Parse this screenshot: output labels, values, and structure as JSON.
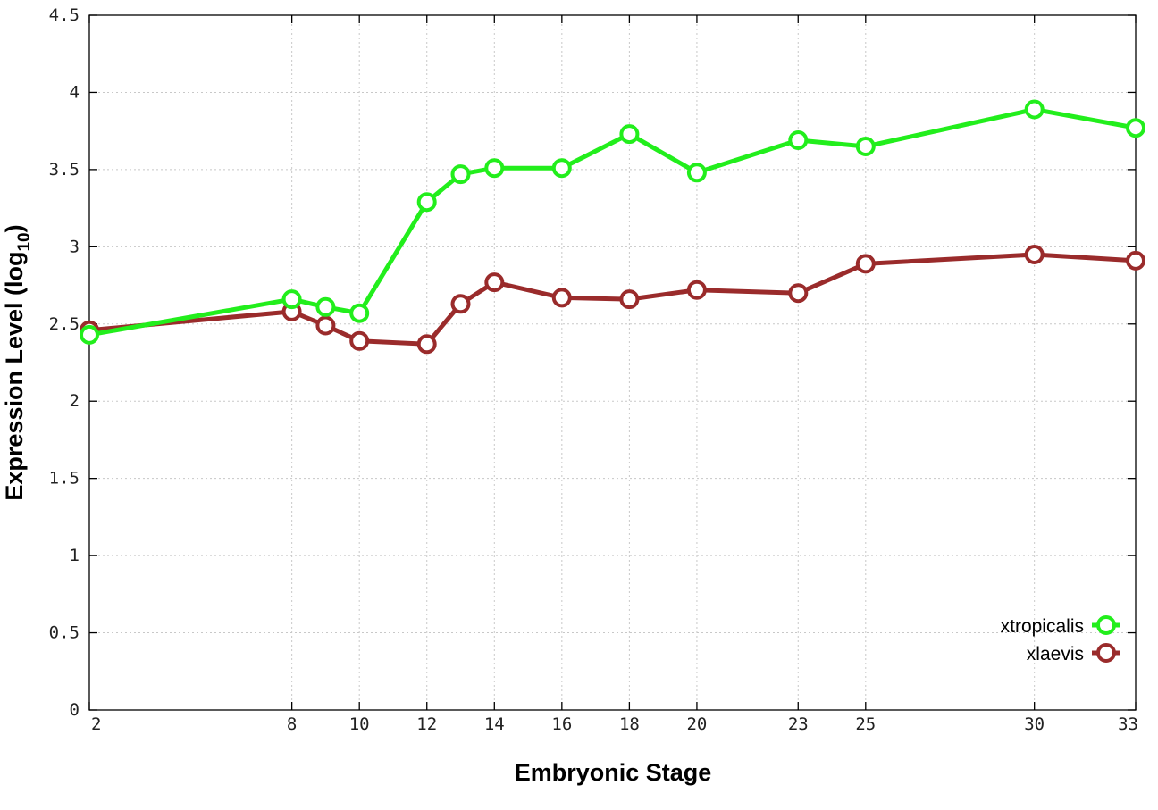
{
  "chart_data": {
    "type": "line",
    "title": "",
    "xlabel": "Embryonic Stage",
    "ylabel": {
      "main": "Expression Level (log",
      "sub": "10",
      "end": ")"
    },
    "x": [
      2,
      8,
      9,
      10,
      12,
      13,
      14,
      16,
      18,
      20,
      23,
      25,
      30,
      33
    ],
    "xticks": [
      2,
      8,
      10,
      12,
      14,
      16,
      18,
      20,
      23,
      25,
      30,
      33
    ],
    "xtick_labels": [
      "2",
      "8",
      "10",
      "12",
      "14",
      "16",
      "18",
      "20",
      "23",
      "25",
      "30",
      "33"
    ],
    "yticks": [
      0,
      0.5,
      1,
      1.5,
      2,
      2.5,
      3,
      3.5,
      4,
      4.5
    ],
    "ytick_labels": [
      "0",
      "0.5",
      "1",
      "1.5",
      "2",
      "2.5",
      "3",
      "3.5",
      "4",
      "4.5"
    ],
    "xlim": [
      2,
      33
    ],
    "ylim": [
      0,
      4.5
    ],
    "grid": true,
    "legend_position": "bottom-right",
    "series": [
      {
        "name": "xtropicalis",
        "color": "#22ee1c",
        "values": [
          2.43,
          2.66,
          2.61,
          2.57,
          3.29,
          3.47,
          3.51,
          3.51,
          3.73,
          3.48,
          3.69,
          3.65,
          3.89,
          3.77
        ]
      },
      {
        "name": "xlaevis",
        "color": "#9a2b2b",
        "values": [
          2.46,
          2.58,
          2.49,
          2.39,
          2.37,
          2.63,
          2.77,
          2.67,
          2.66,
          2.72,
          2.7,
          2.89,
          2.95,
          2.91
        ]
      }
    ]
  }
}
